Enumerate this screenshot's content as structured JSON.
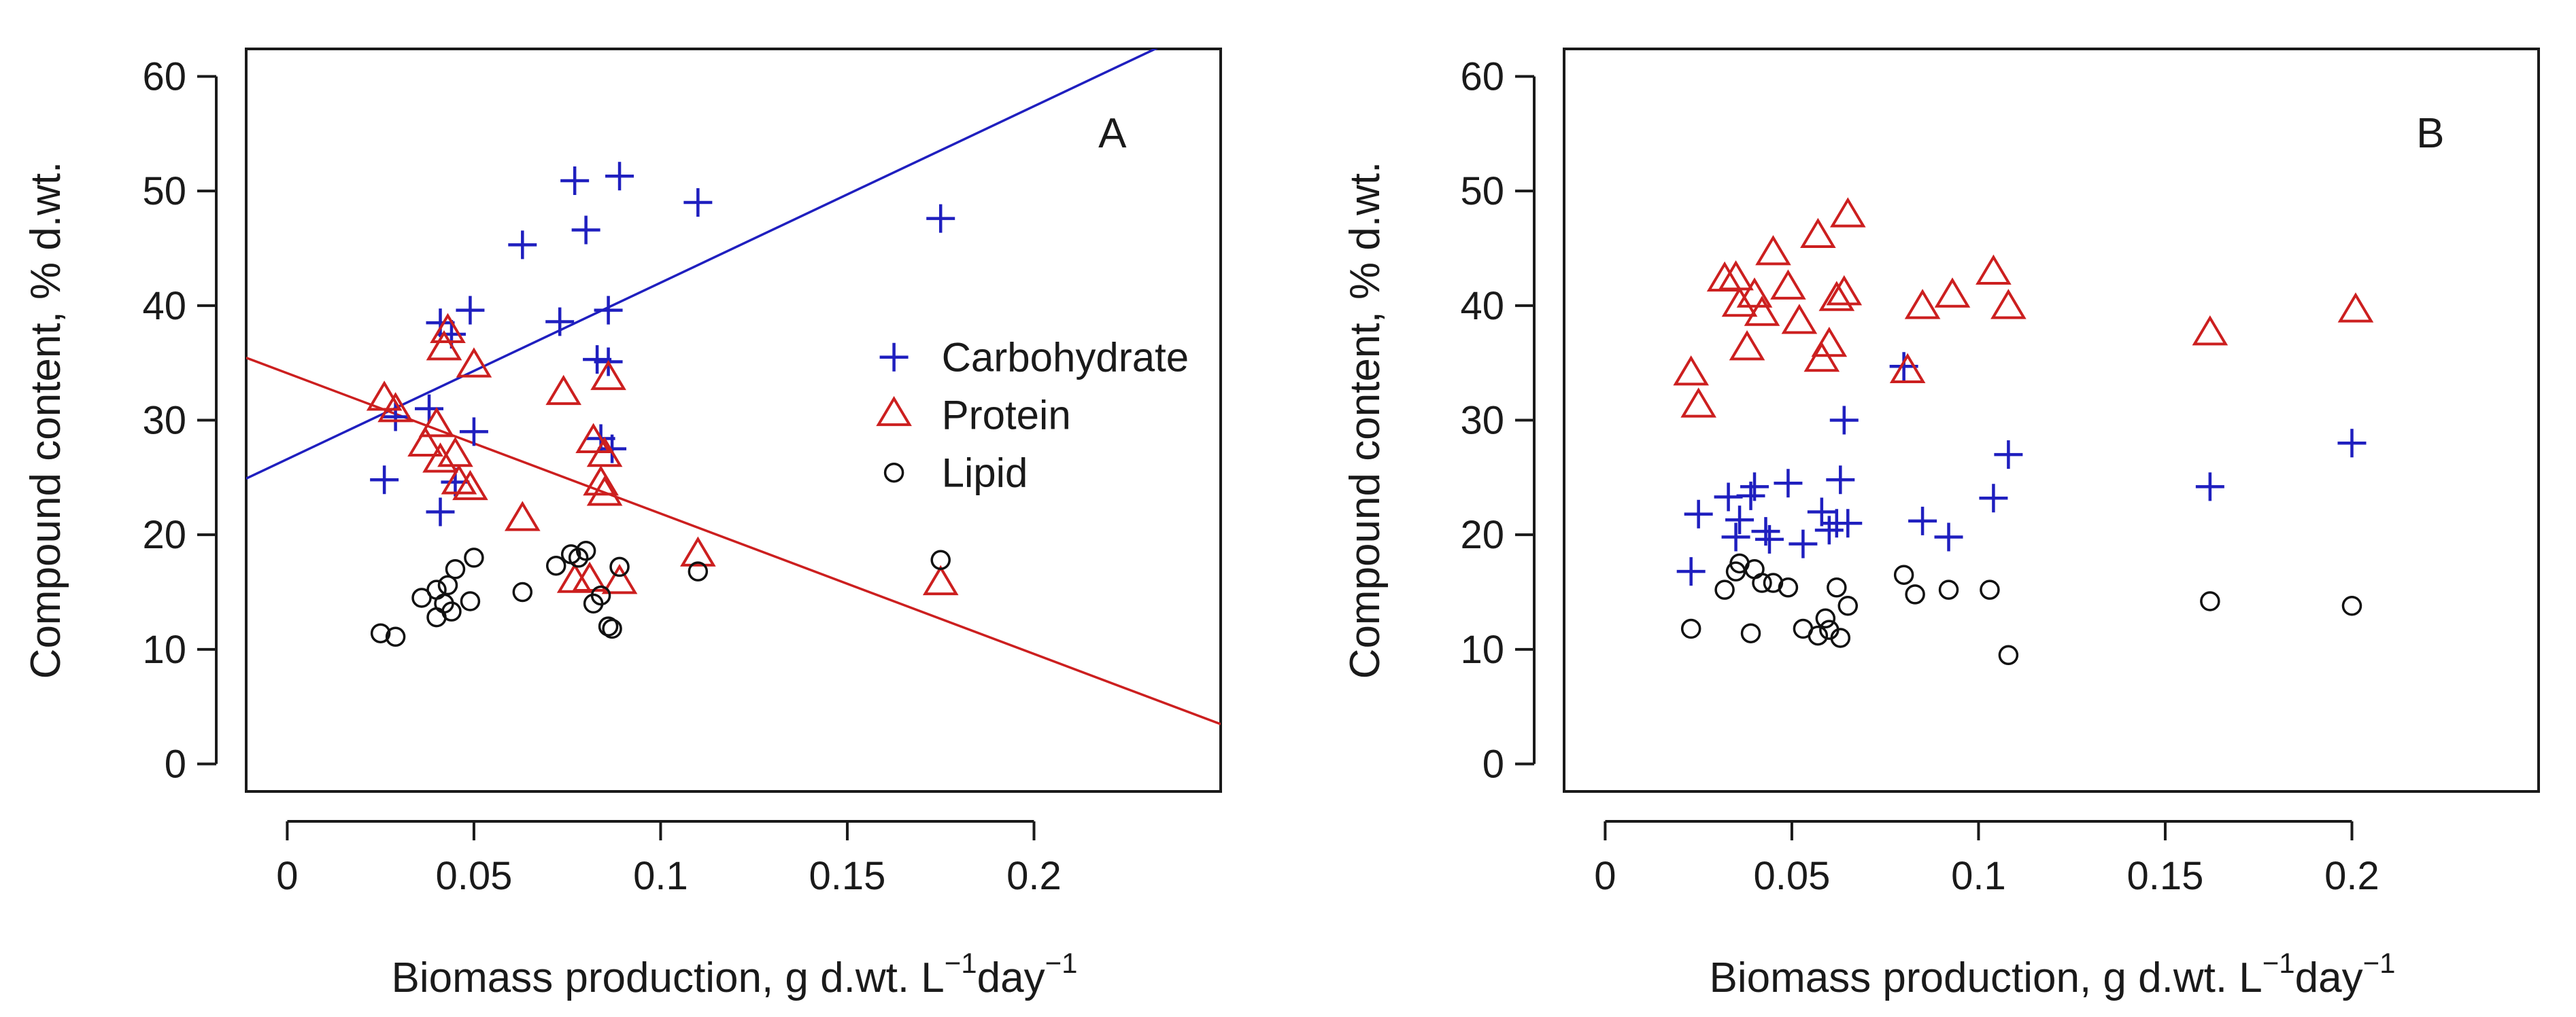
{
  "chart_data": [
    {
      "type": "scatter",
      "panel_label": "A",
      "xlabel": "Biomass production, g d.wt. L",
      "xlabel_sup1": "−1",
      "xlabel_mid": "day",
      "xlabel_sup2": "−1",
      "ylabel": "Compound content, % d.wt.",
      "xlim": [
        -0.011,
        0.25
      ],
      "ylim": [
        -2.4,
        62.4
      ],
      "x_ticks": [
        0,
        0.05,
        0.1,
        0.15,
        0.2
      ],
      "x_tick_labels": [
        "0",
        "0.05",
        "0.1",
        "0.15",
        "0.2"
      ],
      "y_ticks": [
        0,
        10,
        20,
        30,
        40,
        50,
        60
      ],
      "y_tick_labels": [
        "0",
        "10",
        "20",
        "30",
        "40",
        "50",
        "60"
      ],
      "legend": {
        "position": "right",
        "entries": [
          {
            "label": "Carbohydrate",
            "marker": "plus",
            "color": "#1f1fbf"
          },
          {
            "label": "Protein",
            "marker": "triangle",
            "color": "#cc1f1f"
          },
          {
            "label": "Lipid",
            "marker": "circle",
            "color": "#111111"
          }
        ]
      },
      "series": [
        {
          "name": "Carbohydrate",
          "marker": "plus",
          "color": "#1f1fbf",
          "points": [
            [
              0.026,
              24.8
            ],
            [
              0.029,
              30.3
            ],
            [
              0.038,
              31.0
            ],
            [
              0.041,
              38.5
            ],
            [
              0.041,
              22.0
            ],
            [
              0.044,
              37.5
            ],
            [
              0.045,
              24.6
            ],
            [
              0.049,
              39.6
            ],
            [
              0.05,
              29.0
            ],
            [
              0.063,
              45.3
            ],
            [
              0.073,
              38.6
            ],
            [
              0.077,
              50.9
            ],
            [
              0.08,
              46.6
            ],
            [
              0.083,
              35.3
            ],
            [
              0.084,
              28.4
            ],
            [
              0.086,
              39.6
            ],
            [
              0.086,
              35.1
            ],
            [
              0.087,
              27.5
            ],
            [
              0.089,
              51.3
            ],
            [
              0.11,
              49.0
            ],
            [
              0.175,
              47.6
            ]
          ]
        },
        {
          "name": "Protein",
          "marker": "triangle",
          "color": "#cc1f1f",
          "points": [
            [
              0.026,
              31.8
            ],
            [
              0.029,
              30.8
            ],
            [
              0.037,
              27.8
            ],
            [
              0.04,
              29.5
            ],
            [
              0.041,
              26.4
            ],
            [
              0.042,
              36.2
            ],
            [
              0.043,
              37.7
            ],
            [
              0.045,
              26.9
            ],
            [
              0.046,
              24.5
            ],
            [
              0.049,
              24.0
            ],
            [
              0.05,
              34.7
            ],
            [
              0.063,
              21.3
            ],
            [
              0.074,
              32.3
            ],
            [
              0.077,
              15.9
            ],
            [
              0.081,
              16.0
            ],
            [
              0.082,
              28.1
            ],
            [
              0.084,
              24.4
            ],
            [
              0.085,
              26.9
            ],
            [
              0.085,
              23.5
            ],
            [
              0.086,
              33.6
            ],
            [
              0.089,
              15.8
            ],
            [
              0.11,
              18.2
            ],
            [
              0.175,
              15.7
            ]
          ]
        },
        {
          "name": "Lipid",
          "marker": "circle",
          "color": "#111111",
          "points": [
            [
              0.025,
              11.4
            ],
            [
              0.029,
              11.1
            ],
            [
              0.036,
              14.5
            ],
            [
              0.04,
              15.2
            ],
            [
              0.04,
              12.8
            ],
            [
              0.042,
              14.0
            ],
            [
              0.043,
              15.6
            ],
            [
              0.044,
              13.3
            ],
            [
              0.045,
              17.0
            ],
            [
              0.049,
              14.2
            ],
            [
              0.05,
              18.0
            ],
            [
              0.063,
              15.0
            ],
            [
              0.072,
              17.3
            ],
            [
              0.076,
              18.3
            ],
            [
              0.078,
              18.0
            ],
            [
              0.08,
              18.6
            ],
            [
              0.082,
              14.0
            ],
            [
              0.084,
              14.7
            ],
            [
              0.086,
              12.0
            ],
            [
              0.087,
              11.8
            ],
            [
              0.089,
              17.2
            ],
            [
              0.11,
              16.8
            ],
            [
              0.175,
              17.8
            ]
          ]
        }
      ],
      "regression_lines": [
        {
          "series": "Carbohydrate",
          "color": "#1f1fbf",
          "intercept": 26.6,
          "slope": 154.0
        },
        {
          "series": "Protein",
          "color": "#cc1f1f",
          "intercept": 34.1,
          "slope": -122.5
        }
      ]
    },
    {
      "type": "scatter",
      "panel_label": "B",
      "xlabel": "Biomass production, g d.wt. L",
      "xlabel_sup1": "−1",
      "xlabel_mid": "day",
      "xlabel_sup2": "−1",
      "ylabel": "Compound content, % d.wt.",
      "xlim": [
        -0.011,
        0.25
      ],
      "ylim": [
        -2.4,
        62.4
      ],
      "x_ticks": [
        0,
        0.05,
        0.1,
        0.15,
        0.2
      ],
      "x_tick_labels": [
        "0",
        "0.05",
        "0.1",
        "0.15",
        "0.2"
      ],
      "y_ticks": [
        0,
        10,
        20,
        30,
        40,
        50,
        60
      ],
      "y_tick_labels": [
        "0",
        "10",
        "20",
        "30",
        "40",
        "50",
        "60"
      ],
      "series": [
        {
          "name": "Carbohydrate",
          "marker": "plus",
          "color": "#1f1fbf",
          "points": [
            [
              0.023,
              16.8
            ],
            [
              0.025,
              21.8
            ],
            [
              0.033,
              23.3
            ],
            [
              0.035,
              19.8
            ],
            [
              0.036,
              21.3
            ],
            [
              0.039,
              23.4
            ],
            [
              0.04,
              24.2
            ],
            [
              0.043,
              20.3
            ],
            [
              0.044,
              19.6
            ],
            [
              0.049,
              24.5
            ],
            [
              0.053,
              19.2
            ],
            [
              0.058,
              22.0
            ],
            [
              0.06,
              20.4
            ],
            [
              0.062,
              21.0
            ],
            [
              0.063,
              24.8
            ],
            [
              0.064,
              30.0
            ],
            [
              0.065,
              21.0
            ],
            [
              0.08,
              34.7
            ],
            [
              0.085,
              21.2
            ],
            [
              0.092,
              19.8
            ],
            [
              0.104,
              23.2
            ],
            [
              0.108,
              27.0
            ],
            [
              0.162,
              24.2
            ],
            [
              0.2,
              28.0
            ]
          ]
        },
        {
          "name": "Protein",
          "marker": "triangle",
          "color": "#cc1f1f",
          "points": [
            [
              0.023,
              34.0
            ],
            [
              0.025,
              31.2
            ],
            [
              0.032,
              42.2
            ],
            [
              0.035,
              42.3
            ],
            [
              0.036,
              40.0
            ],
            [
              0.038,
              36.2
            ],
            [
              0.04,
              40.8
            ],
            [
              0.042,
              39.2
            ],
            [
              0.045,
              44.5
            ],
            [
              0.049,
              41.5
            ],
            [
              0.052,
              38.5
            ],
            [
              0.057,
              46.0
            ],
            [
              0.058,
              35.2
            ],
            [
              0.06,
              36.5
            ],
            [
              0.062,
              40.5
            ],
            [
              0.064,
              41.0
            ],
            [
              0.065,
              47.8
            ],
            [
              0.081,
              34.2
            ],
            [
              0.085,
              39.8
            ],
            [
              0.093,
              40.8
            ],
            [
              0.104,
              42.8
            ],
            [
              0.108,
              39.8
            ],
            [
              0.162,
              37.5
            ],
            [
              0.201,
              39.5
            ]
          ]
        },
        {
          "name": "Lipid",
          "marker": "circle",
          "color": "#111111",
          "points": [
            [
              0.023,
              11.8
            ],
            [
              0.032,
              15.2
            ],
            [
              0.035,
              16.8
            ],
            [
              0.036,
              17.5
            ],
            [
              0.039,
              11.4
            ],
            [
              0.04,
              17.0
            ],
            [
              0.042,
              15.8
            ],
            [
              0.045,
              15.8
            ],
            [
              0.049,
              15.4
            ],
            [
              0.053,
              11.8
            ],
            [
              0.057,
              11.2
            ],
            [
              0.059,
              12.7
            ],
            [
              0.06,
              11.7
            ],
            [
              0.062,
              15.4
            ],
            [
              0.063,
              11.0
            ],
            [
              0.065,
              13.8
            ],
            [
              0.08,
              16.5
            ],
            [
              0.083,
              14.8
            ],
            [
              0.092,
              15.2
            ],
            [
              0.103,
              15.2
            ],
            [
              0.108,
              9.5
            ],
            [
              0.162,
              14.2
            ],
            [
              0.2,
              13.8
            ]
          ]
        }
      ]
    }
  ]
}
